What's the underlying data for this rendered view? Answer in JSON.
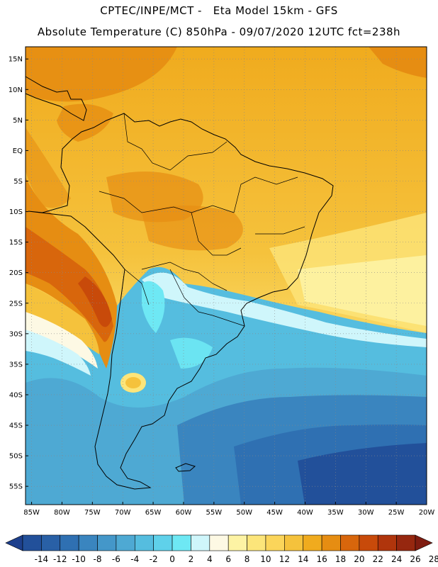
{
  "header": {
    "line1": "CPTEC/INPE/MCT -   Eta Model 15km - GFS",
    "line2": "Absolute Temperature (C) 850hPa - 09/07/2020 12UTC fct=238h"
  },
  "axes": {
    "lat_labels": [
      "15N",
      "10N",
      "5N",
      "EQ",
      "5S",
      "10S",
      "15S",
      "20S",
      "25S",
      "30S",
      "35S",
      "40S",
      "45S",
      "50S",
      "55S"
    ],
    "lon_labels": [
      "85W",
      "80W",
      "75W",
      "70W",
      "65W",
      "60W",
      "55W",
      "50W",
      "45W",
      "40W",
      "35W",
      "30W",
      "25W",
      "20W"
    ]
  },
  "colorbar": {
    "labels": [
      "-14",
      "-12",
      "-10",
      "-8",
      "-6",
      "-4",
      "-2",
      "0",
      "2",
      "4",
      "6",
      "8",
      "10",
      "12",
      "14",
      "16",
      "18",
      "20",
      "22",
      "24",
      "26",
      "28"
    ],
    "colors": [
      "#1d3f8c",
      "#22509a",
      "#2960a6",
      "#2f70b2",
      "#3a85bf",
      "#4497c9",
      "#4ea9d3",
      "#55bddf",
      "#5fd1ea",
      "#6ee8f4",
      "#cff6fb",
      "#fdf9e4",
      "#fdf3a4",
      "#fce57a",
      "#fbd55a",
      "#f5c23c",
      "#f0ab1e",
      "#e68d12",
      "#d8660c",
      "#c84a0a",
      "#b0350c",
      "#96270f",
      "#7f1c10"
    ]
  }
}
